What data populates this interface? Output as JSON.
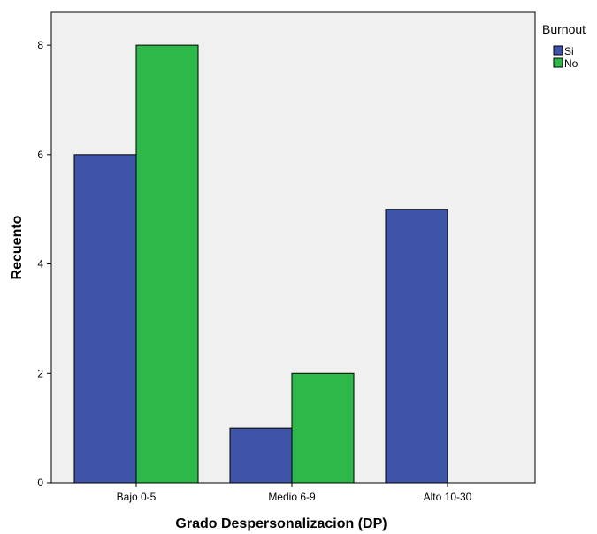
{
  "chart_data": {
    "type": "bar",
    "categories": [
      "Bajo 0-5",
      "Medio 6-9",
      "Alto 10-30"
    ],
    "series": [
      {
        "name": "Si",
        "values": [
          6,
          1,
          5
        ],
        "color": "#3e54a8"
      },
      {
        "name": "No",
        "values": [
          8,
          2,
          0
        ],
        "color": "#2fb84a"
      }
    ],
    "xlabel": "Grado Despersonalizacion (DP)",
    "ylabel": "Recuento",
    "ylim": [
      0,
      8.6
    ],
    "yticks": [
      0,
      2,
      4,
      6,
      8
    ],
    "legend_title": "Burnout",
    "legend_position": "top-right",
    "plot_background": "#f0f0f0",
    "grid": false
  }
}
